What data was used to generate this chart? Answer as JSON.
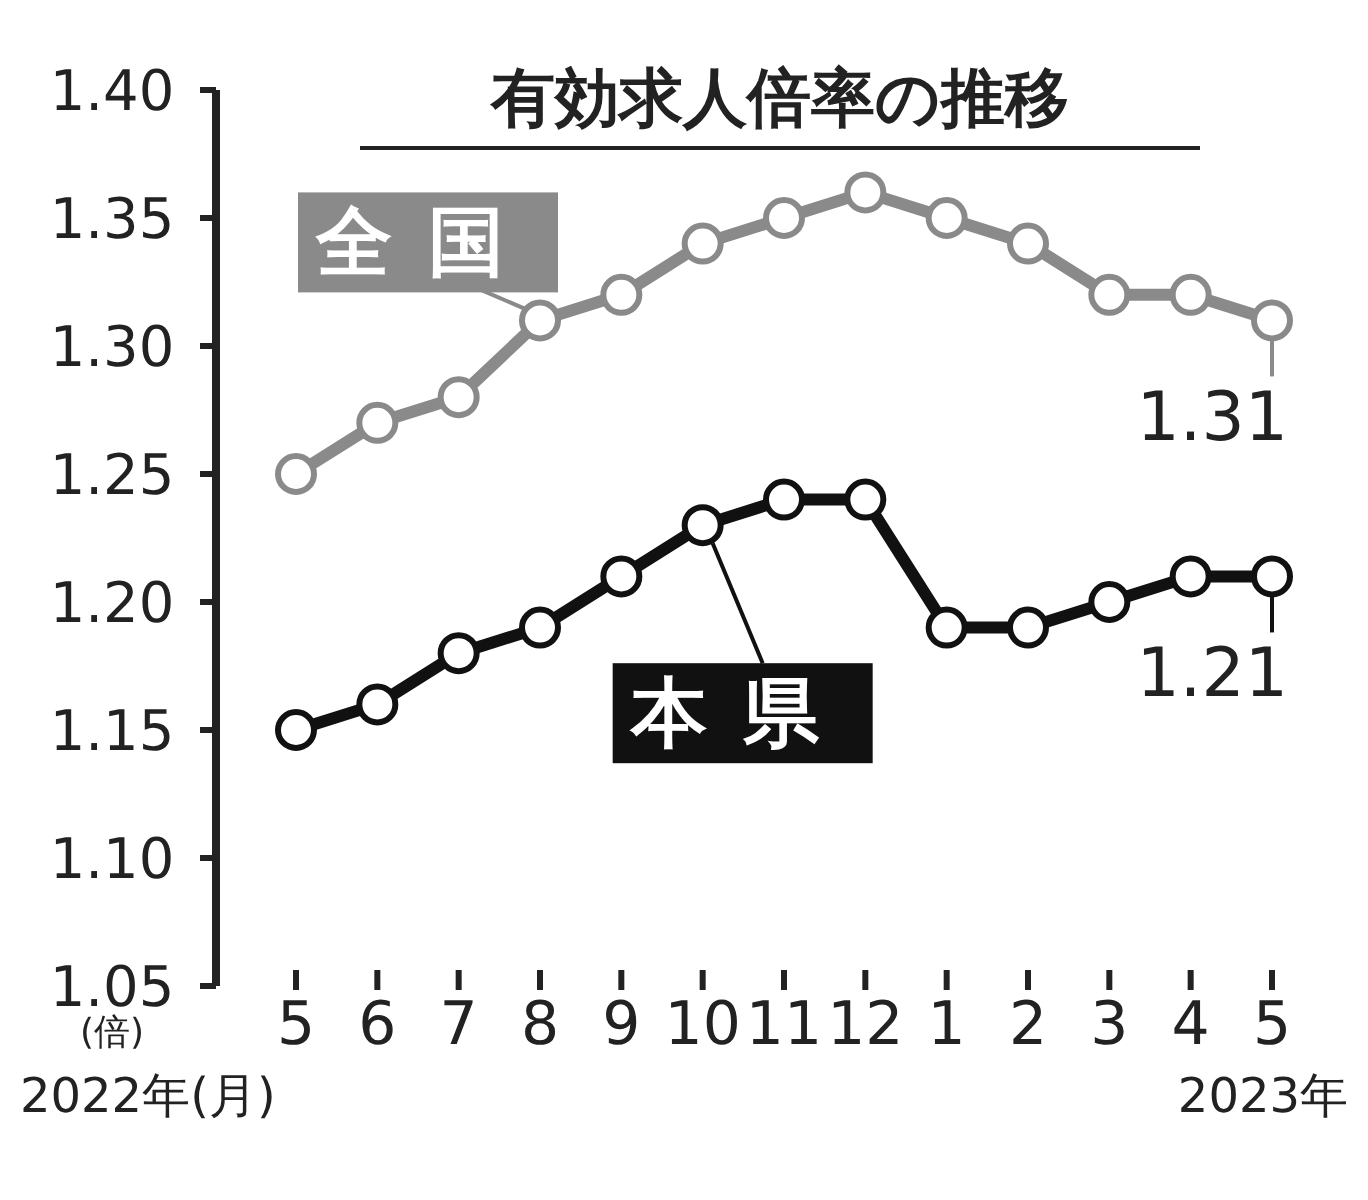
{
  "chart_data": {
    "type": "line",
    "title": "有効求人倍率の推移",
    "ylabel": "(倍)",
    "categories": [
      "5",
      "6",
      "7",
      "8",
      "9",
      "10",
      "11",
      "12",
      "1",
      "2",
      "3",
      "4",
      "5"
    ],
    "series": [
      {
        "name": "全国",
        "color": "#8a8a8a",
        "values": [
          1.25,
          1.27,
          1.28,
          1.31,
          1.32,
          1.34,
          1.35,
          1.36,
          1.35,
          1.34,
          1.32,
          1.32,
          1.31
        ],
        "value_labels": [
          null,
          null,
          null,
          null,
          null,
          null,
          null,
          null,
          null,
          null,
          null,
          null,
          "1.31"
        ]
      },
      {
        "name": "本県",
        "color": "#111111",
        "values": [
          1.15,
          1.16,
          1.18,
          1.19,
          1.21,
          1.23,
          1.24,
          1.24,
          1.19,
          1.19,
          1.2,
          1.21,
          1.21
        ],
        "value_labels": [
          null,
          null,
          null,
          null,
          null,
          null,
          null,
          null,
          null,
          null,
          null,
          null,
          "1.21"
        ]
      }
    ],
    "ylim": [
      1.05,
      1.4
    ],
    "yticks": [
      {
        "value": 1.05,
        "label": "1.05"
      },
      {
        "value": 1.1,
        "label": "1.10"
      },
      {
        "value": 1.15,
        "label": "1.15"
      },
      {
        "value": 1.2,
        "label": "1.20"
      },
      {
        "value": 1.25,
        "label": "1.25"
      },
      {
        "value": 1.3,
        "label": "1.30"
      },
      {
        "value": 1.35,
        "label": "1.35"
      },
      {
        "value": 1.4,
        "label": "1.40"
      }
    ],
    "annotations": [
      "2022年(月)",
      "2023年"
    ],
    "marker": "circle",
    "line_style": "solid",
    "grid": false
  }
}
